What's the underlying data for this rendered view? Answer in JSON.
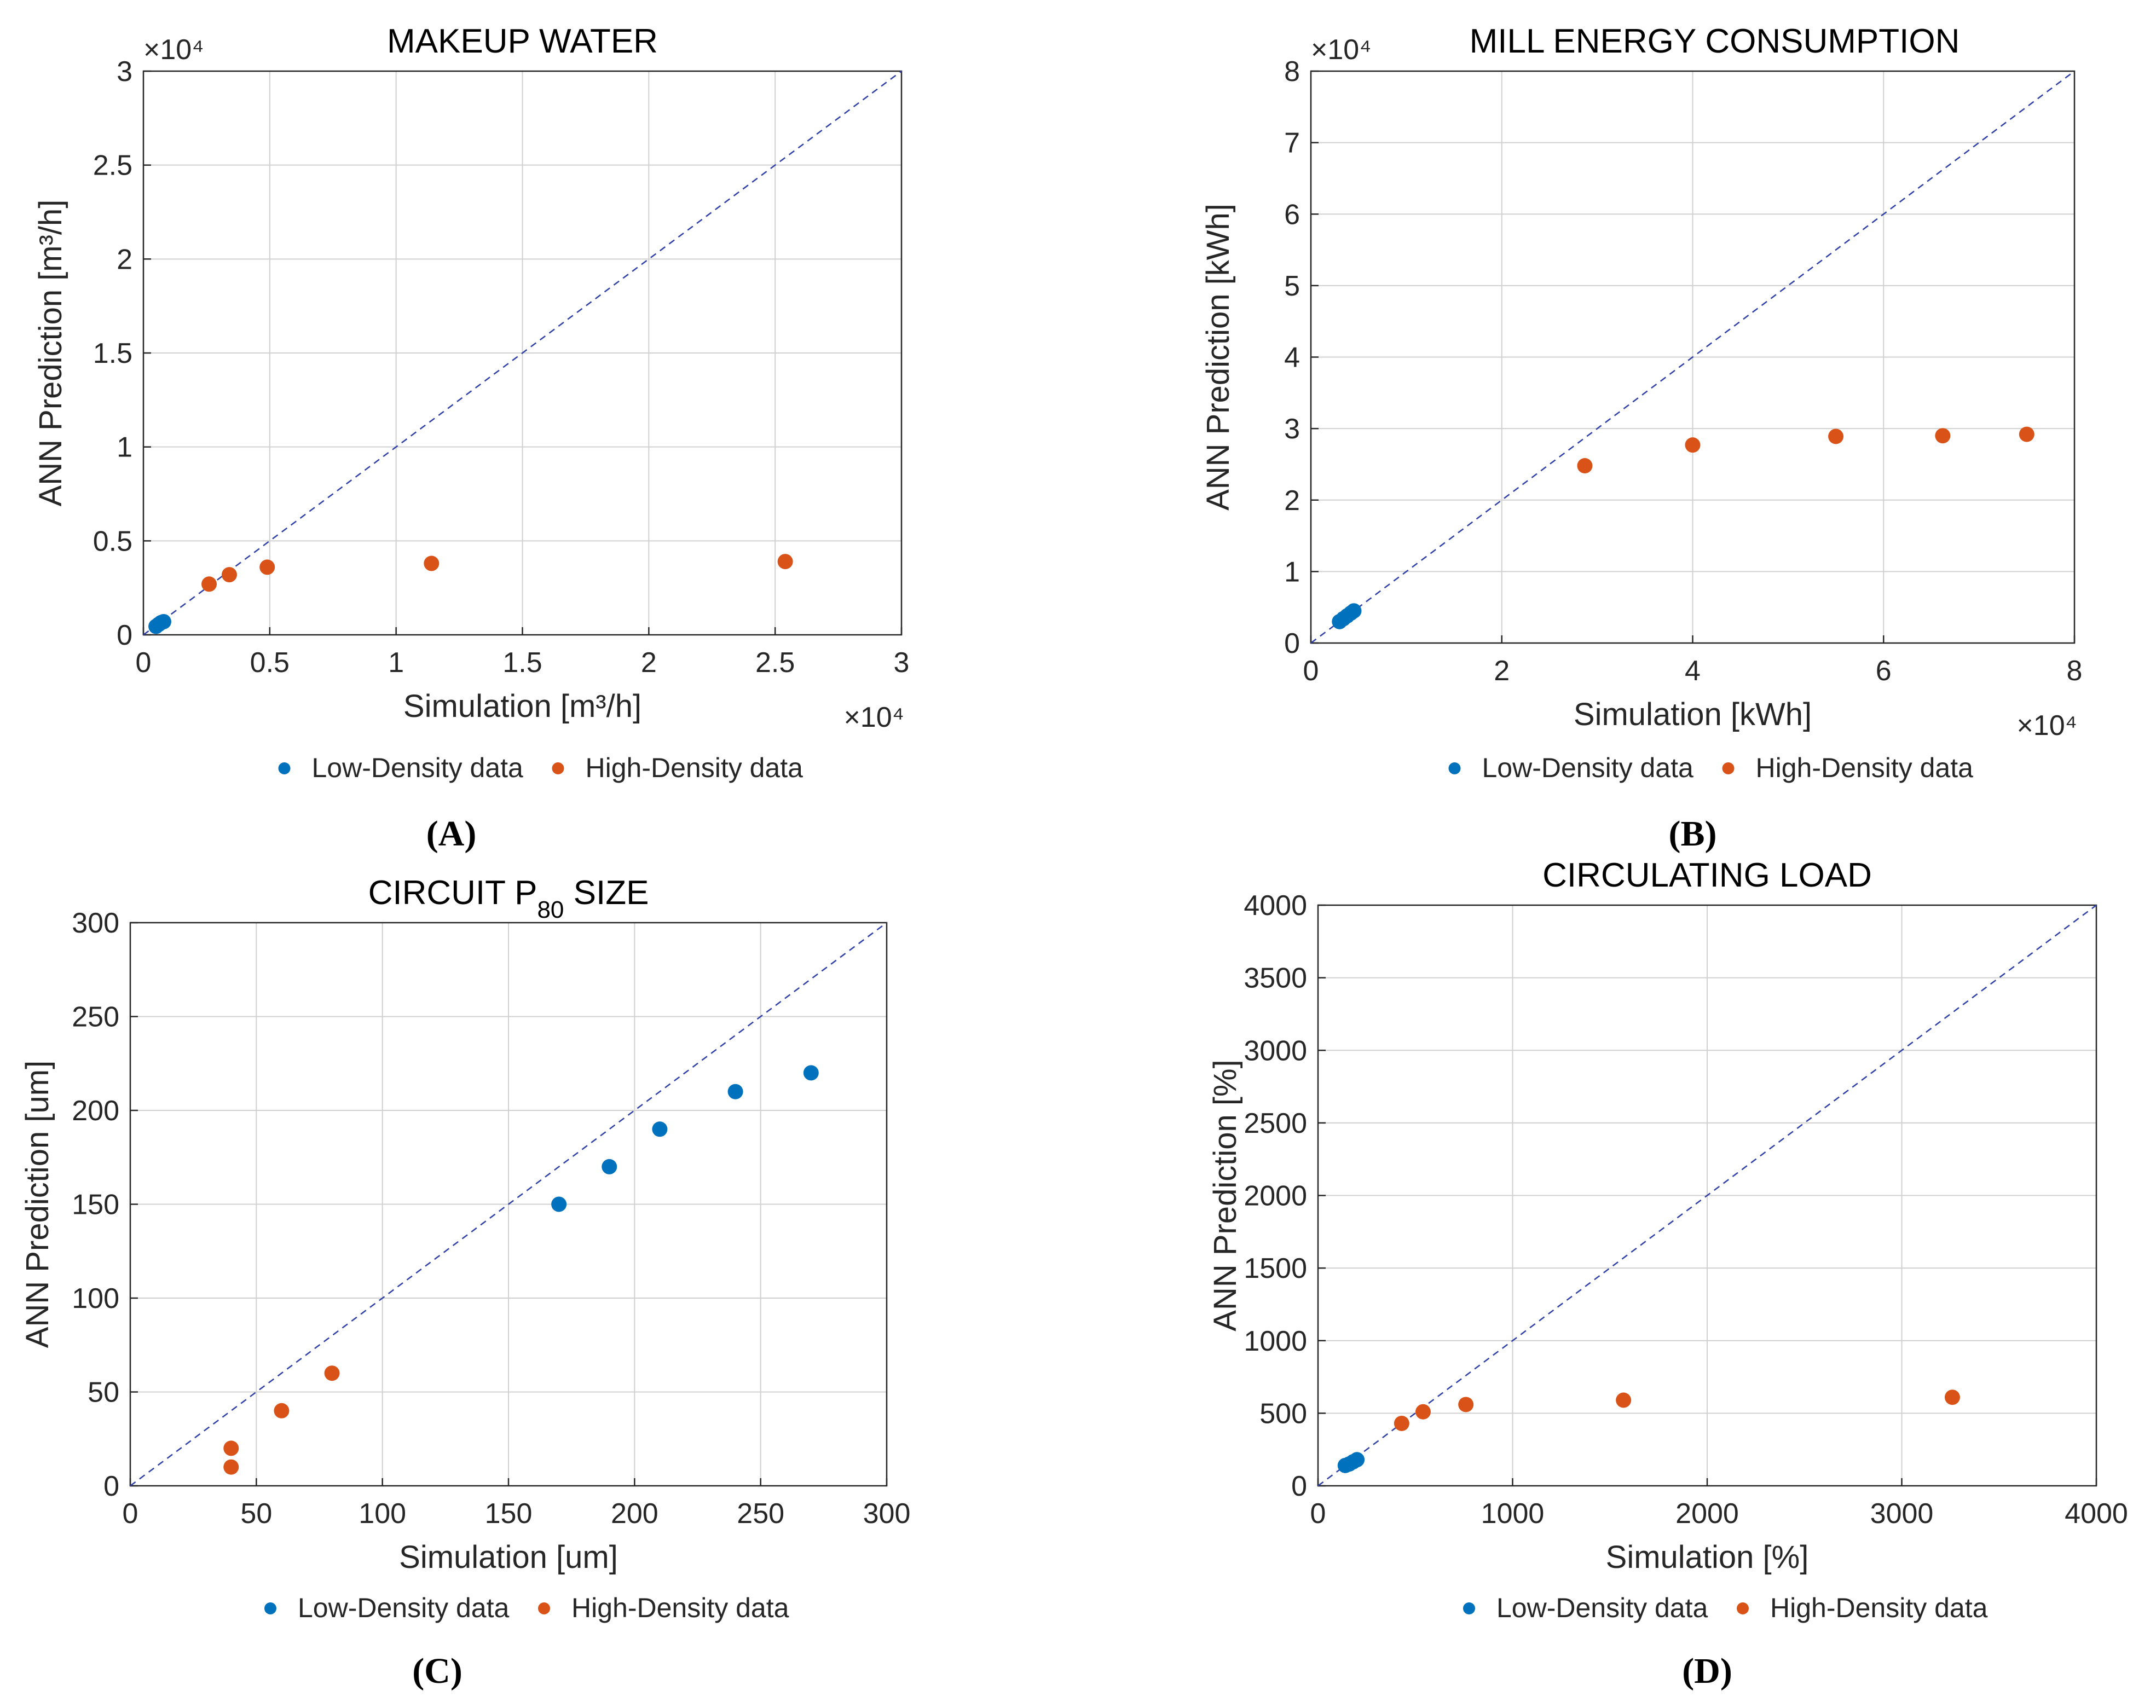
{
  "legend_labels": [
    "Low-Density data",
    "High-Density data"
  ],
  "colors": {
    "low": "#0072BD",
    "high": "#D95319",
    "reference": "#2f3fa8"
  },
  "chart_data": [
    {
      "panel": "(A)",
      "type": "scatter",
      "title": "MAKEUP WATER",
      "title_sub": "",
      "title_suffix": "",
      "xlabel": "Simulation [m³/h]",
      "ylabel": "ANN Prediction [m³/h]",
      "xlim": [
        0,
        30000
      ],
      "ylim": [
        0,
        30000
      ],
      "xticks": [
        0,
        5000,
        10000,
        15000,
        20000,
        25000,
        30000
      ],
      "yticks": [
        0,
        5000,
        10000,
        15000,
        20000,
        25000,
        30000
      ],
      "xtick_labels": [
        "0",
        "0.5",
        "1",
        "1.5",
        "2",
        "2.5",
        "3"
      ],
      "ytick_labels": [
        "0",
        "0.5",
        "1",
        "1.5",
        "2",
        "2.5",
        "3"
      ],
      "x_multiplier": "×10⁴",
      "y_multiplier": "×10⁴",
      "series": [
        {
          "name": "Low-Density data",
          "x": [
            500,
            600,
            700,
            800
          ],
          "y": [
            450,
            550,
            650,
            700
          ]
        },
        {
          "name": "High-Density data",
          "x": [
            2600,
            3400,
            4900,
            11400,
            25400
          ],
          "y": [
            2700,
            3200,
            3600,
            3800,
            3900
          ]
        }
      ]
    },
    {
      "panel": "(B)",
      "type": "scatter",
      "title": "MILL ENERGY CONSUMPTION",
      "title_sub": "",
      "title_suffix": "",
      "xlabel": "Simulation [kWh]",
      "ylabel": "ANN Prediction [kWh]",
      "xlim": [
        0,
        80000
      ],
      "ylim": [
        0,
        80000
      ],
      "xticks": [
        0,
        20000,
        40000,
        60000,
        80000
      ],
      "yticks": [
        0,
        10000,
        20000,
        30000,
        40000,
        50000,
        60000,
        70000,
        80000
      ],
      "xtick_labels": [
        "0",
        "2",
        "4",
        "6",
        "8"
      ],
      "ytick_labels": [
        "0",
        "1",
        "2",
        "3",
        "4",
        "5",
        "6",
        "7",
        "8"
      ],
      "x_multiplier": "×10⁴",
      "y_multiplier": "×10⁴",
      "series": [
        {
          "name": "Low-Density data",
          "x": [
            3000,
            3400,
            3800,
            4200,
            4500
          ],
          "y": [
            3000,
            3400,
            3800,
            4200,
            4500
          ]
        },
        {
          "name": "High-Density data",
          "x": [
            28700,
            40000,
            55000,
            66200,
            75000
          ],
          "y": [
            24800,
            27700,
            28900,
            29000,
            29200
          ]
        }
      ]
    },
    {
      "panel": "(C)",
      "type": "scatter",
      "title": "CIRCUIT P",
      "title_sub": "80",
      "title_suffix": " SIZE",
      "xlabel": "Simulation [um]",
      "ylabel": "ANN Prediction [um]",
      "xlim": [
        0,
        300
      ],
      "ylim": [
        0,
        300
      ],
      "xticks": [
        0,
        50,
        100,
        150,
        200,
        250,
        300
      ],
      "yticks": [
        0,
        50,
        100,
        150,
        200,
        250,
        300
      ],
      "xtick_labels": [
        "0",
        "50",
        "100",
        "150",
        "200",
        "250",
        "300"
      ],
      "ytick_labels": [
        "0",
        "50",
        "100",
        "150",
        "200",
        "250",
        "300"
      ],
      "x_multiplier": "",
      "y_multiplier": "",
      "series": [
        {
          "name": "Low-Density data",
          "x": [
            170,
            190,
            210,
            240,
            270
          ],
          "y": [
            150,
            170,
            190,
            210,
            220
          ]
        },
        {
          "name": "High-Density data",
          "x": [
            40,
            40,
            60,
            80
          ],
          "y": [
            10,
            20,
            40,
            60
          ]
        }
      ]
    },
    {
      "panel": "(D)",
      "type": "scatter",
      "title": "CIRCULATING LOAD",
      "title_sub": "",
      "title_suffix": "",
      "xlabel": "Simulation [%]",
      "ylabel": "ANN Prediction [%]",
      "xlim": [
        0,
        4000
      ],
      "ylim": [
        0,
        4000
      ],
      "xticks": [
        0,
        1000,
        2000,
        3000,
        4000
      ],
      "yticks": [
        0,
        500,
        1000,
        1500,
        2000,
        2500,
        3000,
        3500,
        4000
      ],
      "xtick_labels": [
        "0",
        "1000",
        "2000",
        "3000",
        "4000"
      ],
      "ytick_labels": [
        "0",
        "500",
        "1000",
        "1500",
        "2000",
        "2500",
        "3000",
        "3500",
        "4000"
      ],
      "x_multiplier": "",
      "y_multiplier": "",
      "series": [
        {
          "name": "Low-Density data",
          "x": [
            140,
            160,
            180,
            200
          ],
          "y": [
            140,
            150,
            165,
            180
          ]
        },
        {
          "name": "High-Density data",
          "x": [
            430,
            540,
            760,
            1570,
            3260
          ],
          "y": [
            430,
            510,
            560,
            590,
            610
          ]
        }
      ]
    }
  ]
}
